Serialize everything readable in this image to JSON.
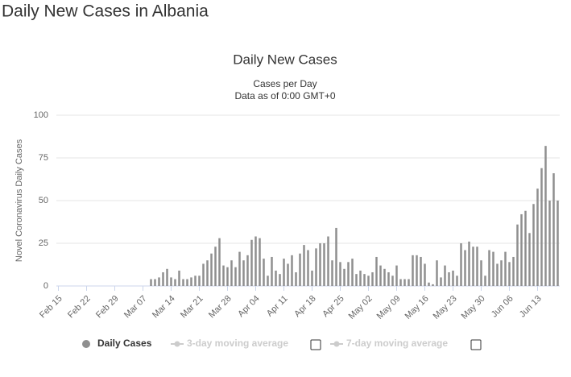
{
  "page_title": "Daily New Cases in Albania",
  "chart_data": {
    "type": "bar",
    "title": "Daily New Cases",
    "subtitle": [
      "Cases per Day",
      "Data as of 0:00 GMT+0"
    ],
    "ylabel": "Novel Coronavirus Daily Cases",
    "categories": [
      "Feb 15",
      null,
      null,
      null,
      null,
      null,
      null,
      "Feb 22",
      null,
      null,
      null,
      null,
      null,
      null,
      "Feb 29",
      null,
      null,
      null,
      null,
      null,
      null,
      "Mar 07",
      null,
      null,
      null,
      null,
      null,
      null,
      "Mar 14",
      null,
      null,
      null,
      null,
      null,
      null,
      "Mar 21",
      null,
      null,
      null,
      null,
      null,
      null,
      "Mar 28",
      null,
      null,
      null,
      null,
      null,
      null,
      "Apr 04",
      null,
      null,
      null,
      null,
      null,
      null,
      "Apr 11",
      null,
      null,
      null,
      null,
      null,
      null,
      "Apr 18",
      null,
      null,
      null,
      null,
      null,
      null,
      "Apr 25",
      null,
      null,
      null,
      null,
      null,
      null,
      "May 02",
      null,
      null,
      null,
      null,
      null,
      null,
      "May 09",
      null,
      null,
      null,
      null,
      null,
      null,
      "May 16",
      null,
      null,
      null,
      null,
      null,
      null,
      "May 23",
      null,
      null,
      null,
      null,
      null,
      null,
      "May 30",
      null,
      null,
      null,
      null,
      null,
      null,
      "Jun 06",
      null,
      null,
      null,
      null,
      null,
      null,
      "Jun 13",
      null,
      null,
      null,
      null,
      null
    ],
    "series": [
      {
        "name": "Daily Cases",
        "color": "#8f8f8f",
        "values": [
          0,
          0,
          0,
          0,
          0,
          0,
          0,
          0,
          0,
          0,
          0,
          0,
          0,
          0,
          0,
          0,
          0,
          0,
          0,
          0,
          0,
          0,
          0,
          4,
          4,
          5,
          8,
          10,
          5,
          4,
          9,
          4,
          4,
          5,
          6,
          6,
          13,
          15,
          19,
          23,
          28,
          12,
          11,
          15,
          11,
          20,
          15,
          18,
          27,
          29,
          28,
          16,
          6,
          17,
          9,
          7,
          16,
          13,
          18,
          8,
          19,
          24,
          21,
          9,
          22,
          25,
          25,
          29,
          15,
          34,
          14,
          10,
          14,
          16,
          7,
          9,
          7,
          6,
          8,
          17,
          12,
          10,
          8,
          6,
          12,
          4,
          4,
          4,
          18,
          18,
          17,
          13,
          2,
          1,
          15,
          5,
          12,
          8,
          9,
          6,
          25,
          21,
          26,
          23,
          23,
          15,
          6,
          21,
          20,
          13,
          15,
          20,
          14,
          17,
          36,
          42,
          44,
          31,
          48,
          57,
          69,
          82,
          50,
          66,
          50
        ]
      }
    ],
    "legend_inactive": [
      "3-day moving average",
      "7-day moving average"
    ],
    "ylim": [
      0,
      100
    ],
    "yticks": [
      0,
      25,
      50,
      75,
      100
    ],
    "grid": true
  }
}
